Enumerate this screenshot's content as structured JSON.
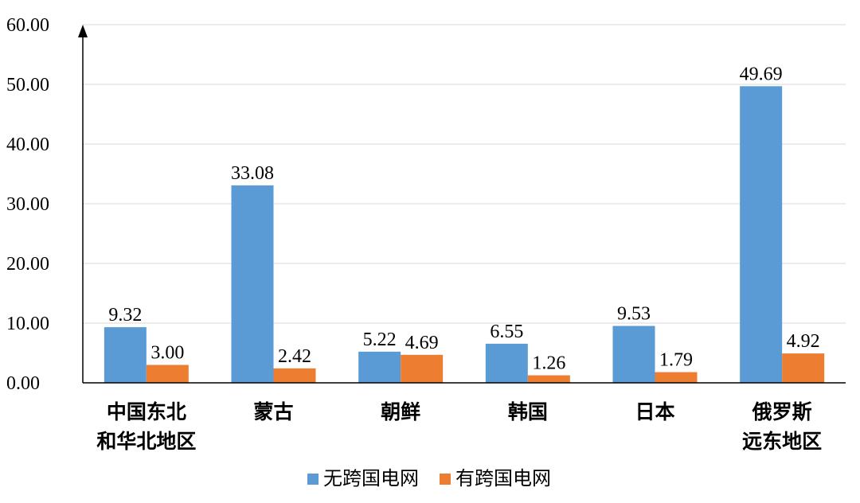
{
  "chart_data": {
    "type": "bar",
    "categories": [
      [
        "中国东北",
        "和华北地区"
      ],
      [
        "蒙古"
      ],
      [
        "朝鲜"
      ],
      [
        "韩国"
      ],
      [
        "日本"
      ],
      [
        "俄罗斯",
        "远东地区"
      ]
    ],
    "series": [
      {
        "name": "无跨国电网",
        "color": "#5B9BD5",
        "values": [
          9.32,
          33.08,
          5.22,
          6.55,
          9.53,
          49.69
        ],
        "labels": [
          "9.32",
          "33.08",
          "5.22",
          "6.55",
          "9.53",
          "49.69"
        ]
      },
      {
        "name": "有跨国电网",
        "color": "#ED7D31",
        "values": [
          3.0,
          2.42,
          4.69,
          1.26,
          1.79,
          4.92
        ],
        "labels": [
          "3.00",
          "2.42",
          "4.69",
          "1.26",
          "1.79",
          "4.92"
        ]
      }
    ],
    "yticks": [
      "0.00",
      "10.00",
      "20.00",
      "30.00",
      "40.00",
      "50.00",
      "60.00"
    ],
    "ylim": [
      0,
      60
    ],
    "grid": true,
    "legend_position": "bottom"
  }
}
